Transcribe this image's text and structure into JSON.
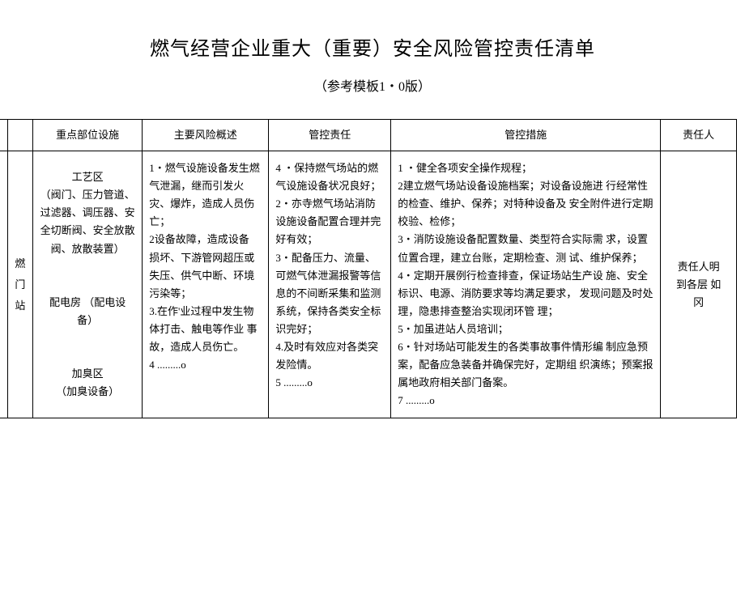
{
  "title": "燃气经营企业重大（重要）安全风险管控责任清单",
  "subtitle": "（参考模板1・0版）",
  "headers": {
    "col0": "",
    "col1": "",
    "col2": "重点部位设施",
    "col3": "主要风险概述",
    "col4": "管控责任",
    "col5": "管控措施",
    "col6": "责任人"
  },
  "row": {
    "label": "燃\n门\n站",
    "facilities": "工艺区\n（阀门、压力管道、过滤器、调压器、安全切断阀、安全放散阀、放散装置）\n\n配电房 （配电设备）\n\n加臭区\n（加臭设备）",
    "risk": "1・燃气设施设备发生燃气泄漏，继而引发火 灾、爆炸，造成人员伤 亡；\n2设备故障，造成设备 损坏、下游管网超压或 失压、供气中断、环境 污染等；\n3.在作'业过程中发生物体打击、触电等作业 事故，造成人员伤亡。\n4 .........o",
    "responsibility": "4 ・保持燃气场站的燃气设施设备状况良好；\n2・亦寺燃气场站消防设施设备配置合理并完好有效；\n3・配备压力、流量、可燃气体泄漏报警等信息的不间断采集和监测系统，保持各类安全标识完好；\n4.及时有效应对各类突发险情。\n5 .........o",
    "measures": "1 ・健全各项安全操作规程；\n2建立燃气场站设备设施档案；对设备设施进 行经常性的检查、维护、保养；对特种设备及 安全附件进行定期校验、检修；\n3・消防设施设备配置数量、类型符合实际需 求，设置位置合理，建立台账，定期检查、测 试、维护保养；\n4・定期开展例行检查排查，保证场站生产设 施、安全标识、电源、消防要求等均满足要求， 发现问题及时处理，隐患排查整治实现闭环管 理；\n5・加虽进站人员培训；\n6・针对场站可能发生的各类事故事件情形编 制应急预案，配备应急装备并确保完好，定期组 织演练；预案报属地政府相关部门备案。\n7 .........o",
    "person": "责任人明\n到各层 如\n冈"
  },
  "style": {
    "bg": "#ffffff",
    "border": "#000000",
    "title_fontsize": 24,
    "subtitle_fontsize": 16,
    "cell_fontsize": 13,
    "line_height": 1.7
  }
}
